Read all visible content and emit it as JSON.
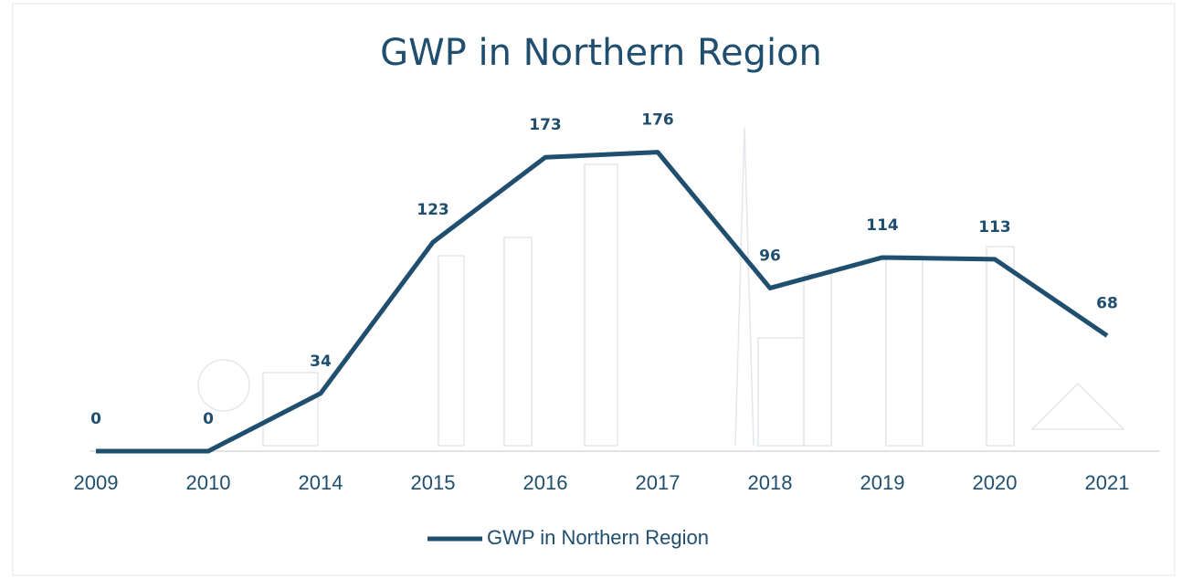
{
  "chart_data": {
    "type": "line",
    "title": "GWP in Northern Region",
    "categories": [
      "2009",
      "2010",
      "2014",
      "2015",
      "2016",
      "2017",
      "2018",
      "2019",
      "2020",
      "2021"
    ],
    "series": [
      {
        "name": "GWP in Northern Region",
        "color": "#1f4e6e",
        "values": [
          0,
          0,
          34,
          123,
          173,
          176,
          96,
          114,
          113,
          68
        ]
      }
    ]
  }
}
